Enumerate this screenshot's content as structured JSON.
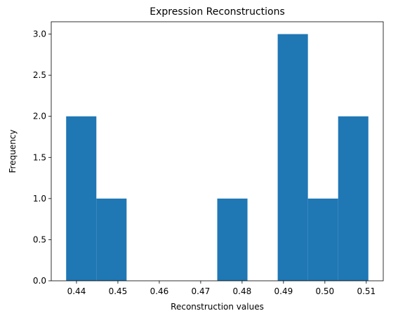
{
  "chart_data": {
    "type": "bar",
    "title": "Expression Reconstructions",
    "xlabel": "Reconstruction values",
    "ylabel": "Frequency",
    "bins": [
      {
        "x0": 0.4375,
        "x1": 0.4448,
        "count": 2
      },
      {
        "x0": 0.4448,
        "x1": 0.4521,
        "count": 1
      },
      {
        "x0": 0.4521,
        "x1": 0.4594,
        "count": 0
      },
      {
        "x0": 0.4594,
        "x1": 0.4667,
        "count": 0
      },
      {
        "x0": 0.4667,
        "x1": 0.474,
        "count": 0
      },
      {
        "x0": 0.474,
        "x1": 0.4813,
        "count": 1
      },
      {
        "x0": 0.4813,
        "x1": 0.4886,
        "count": 0
      },
      {
        "x0": 0.4886,
        "x1": 0.4959,
        "count": 3
      },
      {
        "x0": 0.4959,
        "x1": 0.5032,
        "count": 1
      },
      {
        "x0": 0.5032,
        "x1": 0.5105,
        "count": 2
      }
    ],
    "xlim": [
      0.4339,
      0.5141
    ],
    "ylim": [
      0,
      3.15
    ],
    "xticks": [
      0.44,
      0.45,
      0.46,
      0.47,
      0.48,
      0.49,
      0.5,
      0.51
    ],
    "xtick_labels": [
      "0.44",
      "0.45",
      "0.46",
      "0.47",
      "0.48",
      "0.49",
      "0.50",
      "0.51"
    ],
    "yticks": [
      0.0,
      0.5,
      1.0,
      1.5,
      2.0,
      2.5,
      3.0
    ],
    "ytick_labels": [
      "0.0",
      "0.5",
      "1.0",
      "1.5",
      "2.0",
      "2.5",
      "3.0"
    ],
    "grid": false,
    "bar_color": "#1f77b4"
  }
}
